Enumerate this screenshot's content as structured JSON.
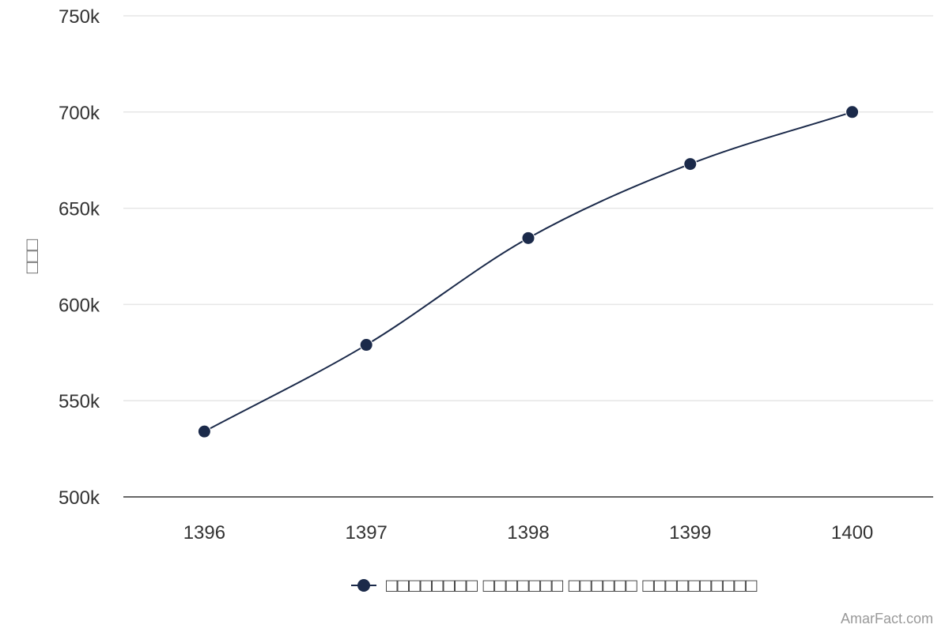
{
  "chart_data": {
    "type": "line",
    "x": [
      "1396",
      "1397",
      "1398",
      "1399",
      "1400"
    ],
    "series": [
      {
        "name": "□□□□□□□□ □□□□□□□ □□□□□□ □□□□□□□□□□",
        "values": [
          534000,
          579000,
          634500,
          673000,
          700000
        ]
      }
    ],
    "ylabel": "□□□",
    "xlabel": "",
    "ylim": [
      500000,
      750000
    ],
    "yticks": [
      500000,
      550000,
      600000,
      650000,
      700000,
      750000
    ],
    "ytick_labels": [
      "500k",
      "550k",
      "600k",
      "650k",
      "700k",
      "750k"
    ],
    "grid": true,
    "legend": "bottom-center"
  },
  "colors": {
    "series": "#1b2a4a",
    "grid": "#e6e6e6",
    "axis": "#333333"
  },
  "credit": "AmarFact.com"
}
